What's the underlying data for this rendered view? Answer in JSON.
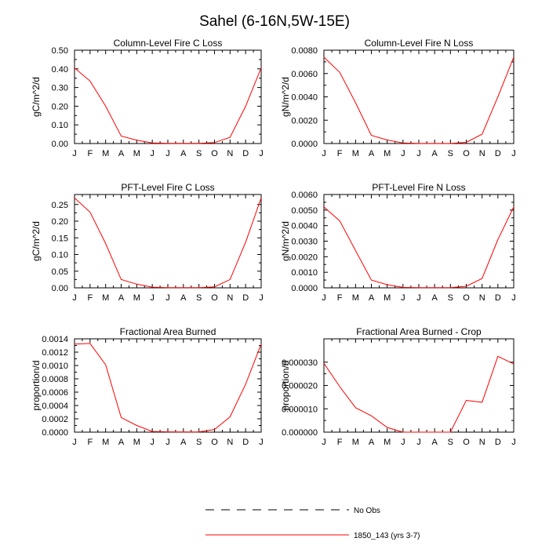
{
  "title": "Sahel (6-16N,5W-15E)",
  "legend": [
    {
      "label": "No Obs",
      "style": "dashed",
      "color": "#000000"
    },
    {
      "label": "1850_143 (yrs 3-7)",
      "style": "solid",
      "color": "#ff0000"
    }
  ],
  "chart_data": [
    {
      "type": "line",
      "title": "Column-Level Fire C Loss",
      "ylabel": "gC/m^2/d",
      "xlabel": "",
      "categories": [
        "J",
        "F",
        "M",
        "A",
        "M",
        "J",
        "J",
        "A",
        "S",
        "O",
        "N",
        "D",
        "J"
      ],
      "ylim": [
        0,
        0.5
      ],
      "yticks": [
        "0.00",
        "0.10",
        "0.20",
        "0.30",
        "0.40",
        "0.50"
      ],
      "series": [
        {
          "name": "1850_143 (yrs 3-7)",
          "values": [
            0.405,
            0.335,
            0.2,
            0.04,
            0.018,
            0.003,
            0.001,
            0.001,
            0.001,
            0.005,
            0.033,
            0.2,
            0.405
          ]
        }
      ]
    },
    {
      "type": "line",
      "title": "Column-Level Fire N Loss",
      "ylabel": "gN/m^2/d",
      "xlabel": "",
      "categories": [
        "J",
        "F",
        "M",
        "A",
        "M",
        "J",
        "J",
        "A",
        "S",
        "O",
        "N",
        "D",
        "J"
      ],
      "ylim": [
        0,
        0.008
      ],
      "yticks": [
        "0.0000",
        "0.0020",
        "0.0040",
        "0.0060",
        "0.0080"
      ],
      "series": [
        {
          "name": "1850_143 (yrs 3-7)",
          "values": [
            0.0074,
            0.0061,
            0.0035,
            0.0007,
            0.0003,
            5e-05,
            1e-05,
            1e-05,
            1e-05,
            0.0001,
            0.0008,
            0.004,
            0.0074
          ]
        }
      ]
    },
    {
      "type": "line",
      "title": "PFT-Level Fire C Loss",
      "ylabel": "gC/m^2/d",
      "xlabel": "",
      "categories": [
        "J",
        "F",
        "M",
        "A",
        "M",
        "J",
        "J",
        "A",
        "S",
        "O",
        "N",
        "D",
        "J"
      ],
      "ylim": [
        0,
        0.28
      ],
      "yticks": [
        "0.00",
        "0.05",
        "0.10",
        "0.15",
        "0.20",
        "0.25"
      ],
      "series": [
        {
          "name": "1850_143 (yrs 3-7)",
          "values": [
            0.27,
            0.227,
            0.133,
            0.025,
            0.011,
            0.002,
            0.0005,
            0.0005,
            0.0005,
            0.003,
            0.025,
            0.137,
            0.27
          ]
        }
      ]
    },
    {
      "type": "line",
      "title": "PFT-Level Fire N Loss",
      "ylabel": "gN/m^2/d",
      "xlabel": "",
      "categories": [
        "J",
        "F",
        "M",
        "A",
        "M",
        "J",
        "J",
        "A",
        "S",
        "O",
        "N",
        "D",
        "J"
      ],
      "ylim": [
        0,
        0.006
      ],
      "yticks": [
        "0.0000",
        "0.0010",
        "0.0020",
        "0.0030",
        "0.0040",
        "0.0050",
        "0.0060"
      ],
      "series": [
        {
          "name": "1850_143 (yrs 3-7)",
          "values": [
            0.0052,
            0.0043,
            0.0024,
            0.0005,
            0.0002,
            3e-05,
            1e-05,
            1e-05,
            1e-05,
            0.0001,
            0.0006,
            0.0031,
            0.0052
          ]
        }
      ]
    },
    {
      "type": "line",
      "title": "Fractional Area Burned",
      "ylabel": "proportion/d",
      "xlabel": "",
      "categories": [
        "J",
        "F",
        "M",
        "A",
        "M",
        "J",
        "J",
        "A",
        "S",
        "O",
        "N",
        "D",
        "J"
      ],
      "ylim": [
        0,
        0.0014
      ],
      "yticks": [
        "0.0000",
        "0.0002",
        "0.0004",
        "0.0006",
        "0.0008",
        "0.0010",
        "0.0012",
        "0.0014"
      ],
      "series": [
        {
          "name": "1850_143 (yrs 3-7)",
          "values": [
            0.00132,
            0.00133,
            0.00101,
            0.00022,
            0.0001,
            1e-05,
            5e-06,
            3e-06,
            3e-06,
            4e-05,
            0.00023,
            0.00072,
            0.00132
          ]
        }
      ]
    },
    {
      "type": "line",
      "title": "Fractional Area Burned - Crop",
      "ylabel": "proportion/d",
      "xlabel": "",
      "categories": [
        "J",
        "F",
        "M",
        "A",
        "M",
        "J",
        "J",
        "A",
        "S",
        "O",
        "N",
        "D",
        "J"
      ],
      "ylim": [
        0,
        4e-05
      ],
      "yticks": [
        "0.000000",
        "0.000010",
        "0.000020",
        "0.000030"
      ],
      "series": [
        {
          "name": "1850_143 (yrs 3-7)",
          "values": [
            2.95e-05,
            1.95e-05,
            1.05e-05,
            7e-06,
            2e-06,
            0.0,
            0.0,
            0.0,
            0.0,
            1.36e-05,
            1.28e-05,
            3.25e-05,
            2.92e-05
          ]
        }
      ]
    }
  ]
}
